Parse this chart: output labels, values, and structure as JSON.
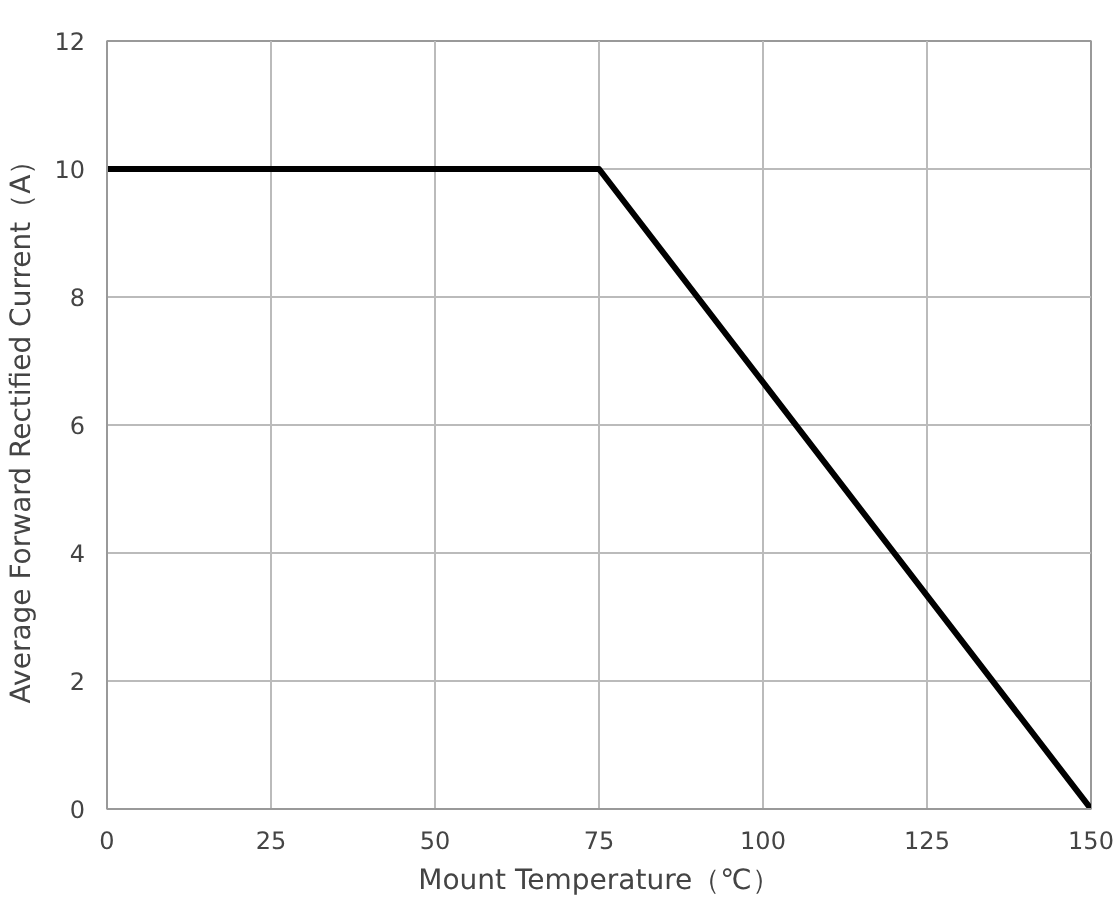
{
  "chart_data": {
    "type": "line",
    "xlabel": "Mount Temperature（℃）",
    "ylabel": "Average Forward Rectified Current（A）",
    "x": [
      0,
      75,
      150
    ],
    "series": [
      {
        "color": "#000000",
        "values": [
          10,
          10,
          0
        ]
      }
    ],
    "xlim": [
      0,
      150
    ],
    "xticks": [
      0,
      25,
      50,
      75,
      100,
      125,
      150
    ],
    "ylim": [
      0,
      12
    ],
    "yticks": [
      0,
      2,
      4,
      6,
      8,
      10,
      12
    ],
    "grid": true,
    "line_style": "solid"
  }
}
